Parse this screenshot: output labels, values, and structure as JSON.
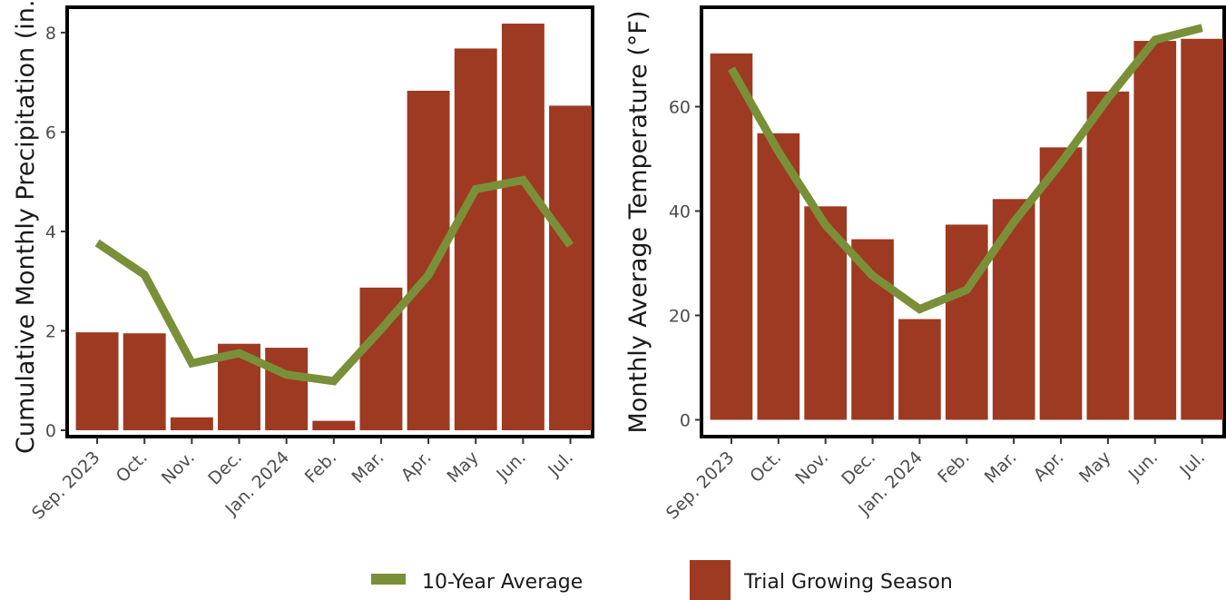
{
  "chart_data": [
    {
      "type": "bar",
      "title": "",
      "xlabel": "",
      "ylabel": "Cumulative Monthly Precipitation (in.)",
      "ylim": [
        0,
        8.4
      ],
      "yticks": [
        0,
        2,
        4,
        6,
        8
      ],
      "categories": [
        "Sep. 2023",
        "Oct.",
        "Nov.",
        "Dec.",
        "Jan. 2024",
        "Feb.",
        "Mar.",
        "Apr.",
        "May",
        "Jun.",
        "Jul."
      ],
      "series": [
        {
          "name": "Trial Growing Season",
          "kind": "bar",
          "values": [
            1.97,
            1.95,
            0.26,
            1.74,
            1.66,
            0.19,
            2.87,
            6.83,
            7.68,
            8.18,
            6.53
          ]
        },
        {
          "name": "10-Year Average",
          "kind": "line",
          "values": [
            3.77,
            3.13,
            1.35,
            1.55,
            1.12,
            0.99,
            2.03,
            3.12,
            4.85,
            5.03,
            3.72
          ]
        }
      ],
      "grid": false
    },
    {
      "type": "bar",
      "title": "",
      "xlabel": "",
      "ylabel": "Monthly Average Temperature  (°F)",
      "ylim": [
        -2,
        78
      ],
      "yticks": [
        0,
        20,
        40,
        60
      ],
      "categories": [
        "Sep. 2023",
        "Oct.",
        "Nov.",
        "Dec.",
        "Jan. 2024",
        "Feb.",
        "Mar.",
        "Apr.",
        "May",
        "Jun.",
        "Jul."
      ],
      "series": [
        {
          "name": "Trial Growing Season",
          "kind": "bar",
          "values": [
            70.2,
            54.9,
            40.9,
            34.6,
            19.3,
            37.4,
            42.3,
            52.2,
            62.9,
            72.6,
            73.0
          ]
        },
        {
          "name": "10-Year Average",
          "kind": "line",
          "values": [
            67.3,
            51.4,
            37.3,
            27.6,
            21.2,
            24.9,
            37.9,
            49.2,
            61.6,
            72.8,
            75.1
          ]
        }
      ],
      "grid": false
    }
  ],
  "legend": {
    "line_label": "10-Year Average",
    "bar_label": "Trial Growing Season"
  },
  "colors": {
    "bar": "#9e3a22",
    "line": "#7a9038",
    "frame": "#000000"
  }
}
